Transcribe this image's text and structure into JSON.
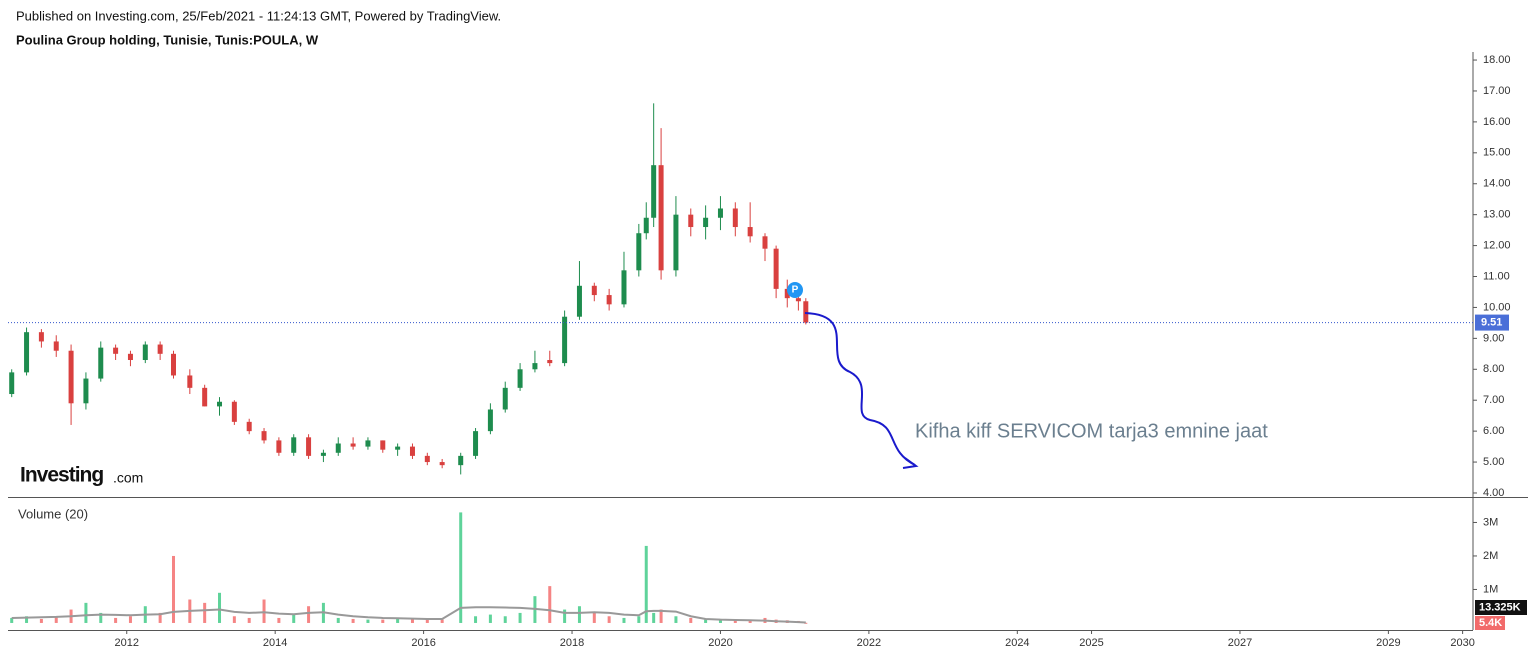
{
  "chart_data": {
    "type": "candlestick",
    "subtitle": "Published on Investing.com, 25/Feb/2021 - 11:24:13 GMT, Powered by TradingView.",
    "title": "Poulina Group holding, Tunisie, Tunis:POULA, W",
    "logo": {
      "brand": "Investing",
      "suffix": ".com"
    },
    "annotation": "Kifha kiff SERVICOM tarja3 emnine jaat",
    "marker_label": "P",
    "up_color": "#1e8c4e",
    "down_color": "#d9403f",
    "volume_up_color": "#5fd39a",
    "volume_down_color": "#f58484",
    "volume_ma_color": "#999999",
    "x": [
      2010.45,
      2010.65,
      2010.85,
      2011.05,
      2011.25,
      2011.45,
      2011.65,
      2011.85,
      2012.05,
      2012.25,
      2012.45,
      2012.63,
      2012.85,
      2013.05,
      2013.25,
      2013.45,
      2013.65,
      2013.85,
      2014.05,
      2014.25,
      2014.45,
      2014.65,
      2014.85,
      2015.05,
      2015.25,
      2015.45,
      2015.65,
      2015.85,
      2016.05,
      2016.25,
      2016.5,
      2016.7,
      2016.9,
      2017.1,
      2017.3,
      2017.5,
      2017.7,
      2017.9,
      2018.1,
      2018.3,
      2018.5,
      2018.7,
      2018.9,
      2019.0,
      2019.1,
      2019.2,
      2019.4,
      2019.6,
      2019.8,
      2020.0,
      2020.2,
      2020.4,
      2020.6,
      2020.75,
      2020.9,
      2021.05,
      2021.15
    ],
    "open": [
      7.2,
      7.9,
      9.2,
      8.9,
      8.6,
      6.9,
      7.7,
      8.7,
      8.5,
      8.3,
      8.8,
      8.5,
      7.8,
      7.4,
      6.8,
      6.95,
      6.3,
      6.0,
      5.7,
      5.3,
      5.8,
      5.2,
      5.3,
      5.6,
      5.5,
      5.7,
      5.4,
      5.5,
      5.2,
      5.0,
      4.9,
      5.2,
      6.0,
      6.7,
      7.4,
      8.0,
      8.3,
      8.2,
      9.7,
      10.7,
      10.4,
      10.1,
      11.2,
      12.4,
      12.9,
      14.6,
      11.2,
      13.0,
      12.6,
      12.9,
      13.2,
      12.6,
      12.3,
      11.9,
      10.6,
      10.3,
      10.2
    ],
    "high": [
      8.0,
      9.35,
      9.3,
      9.1,
      8.8,
      7.9,
      8.9,
      8.8,
      8.6,
      8.9,
      8.9,
      8.6,
      8.0,
      7.5,
      7.1,
      7.0,
      6.4,
      6.1,
      5.8,
      5.9,
      5.9,
      5.4,
      5.8,
      5.8,
      5.8,
      5.7,
      5.6,
      5.6,
      5.3,
      5.1,
      5.3,
      6.1,
      6.9,
      7.6,
      8.2,
      8.6,
      8.6,
      9.9,
      11.5,
      10.8,
      10.6,
      11.8,
      12.7,
      13.4,
      16.6,
      15.8,
      13.6,
      13.2,
      13.3,
      13.6,
      13.4,
      13.4,
      12.4,
      12.0,
      10.9,
      10.5,
      10.3
    ],
    "low": [
      7.1,
      7.8,
      8.7,
      8.4,
      6.2,
      6.7,
      7.6,
      8.3,
      8.1,
      8.2,
      8.3,
      7.7,
      7.2,
      6.8,
      6.5,
      6.2,
      5.9,
      5.6,
      5.2,
      5.2,
      5.1,
      5.0,
      5.2,
      5.4,
      5.4,
      5.3,
      5.2,
      5.1,
      4.9,
      4.8,
      4.6,
      5.1,
      5.9,
      6.6,
      7.3,
      7.9,
      8.1,
      8.1,
      9.6,
      10.2,
      9.9,
      10.0,
      11.0,
      12.2,
      12.6,
      10.9,
      11.0,
      12.3,
      12.2,
      12.5,
      12.3,
      12.1,
      11.5,
      10.3,
      10.0,
      9.9,
      9.45
    ],
    "close": [
      7.9,
      9.2,
      8.9,
      8.6,
      6.9,
      7.7,
      8.7,
      8.5,
      8.3,
      8.8,
      8.5,
      7.8,
      7.4,
      6.8,
      6.95,
      6.3,
      6.0,
      5.7,
      5.3,
      5.8,
      5.2,
      5.3,
      5.6,
      5.5,
      5.7,
      5.4,
      5.5,
      5.2,
      5.0,
      4.9,
      5.2,
      6.0,
      6.7,
      7.4,
      8.0,
      8.2,
      8.2,
      9.7,
      10.7,
      10.4,
      10.1,
      11.2,
      12.4,
      12.9,
      14.6,
      11.2,
      13.0,
      12.6,
      12.9,
      13.2,
      12.6,
      12.3,
      11.9,
      10.6,
      10.3,
      10.2,
      9.51
    ],
    "volume": [
      150000,
      200000,
      120000,
      180000,
      400000,
      600000,
      300000,
      150000,
      200000,
      500000,
      300000,
      2000000,
      700000,
      600000,
      900000,
      200000,
      150000,
      700000,
      150000,
      250000,
      500000,
      600000,
      150000,
      120000,
      100000,
      100000,
      150000,
      120000,
      120000,
      100000,
      3300000,
      200000,
      250000,
      200000,
      300000,
      800000,
      1100000,
      400000,
      500000,
      300000,
      200000,
      150000,
      200000,
      2300000,
      300000,
      400000,
      200000,
      150000,
      100000,
      120000,
      100000,
      100000,
      150000,
      100000,
      80000,
      60000,
      5400
    ],
    "volume_ma": [
      150000,
      160000,
      170000,
      180000,
      200000,
      230000,
      250000,
      240000,
      230000,
      250000,
      260000,
      330000,
      360000,
      380000,
      400000,
      330000,
      300000,
      320000,
      280000,
      260000,
      300000,
      320000,
      250000,
      200000,
      170000,
      150000,
      140000,
      130000,
      120000,
      120000,
      450000,
      470000,
      470000,
      460000,
      450000,
      420000,
      380000,
      300000,
      300000,
      320000,
      300000,
      250000,
      230000,
      350000,
      360000,
      360000,
      340000,
      200000,
      120000,
      100000,
      90000,
      80000,
      70000,
      50000,
      40000,
      25000,
      13325
    ],
    "volume_ma_last_label": "13.325K",
    "volume_last_label": "5.4K",
    "volume_title": "Volume (20)",
    "last_price": 9.51,
    "xlim": [
      2010.4,
      2030.14
    ],
    "xticks": [
      2012,
      2014,
      2016,
      2018,
      2020,
      2022,
      2024,
      2025,
      2027,
      2029,
      2030
    ],
    "ylim": [
      3.87,
      18.26
    ],
    "yticks": [
      {
        "value": 4,
        "label": "4.00"
      },
      {
        "value": 5,
        "label": "5.00"
      },
      {
        "value": 6,
        "label": "6.00"
      },
      {
        "value": 7,
        "label": "7.00"
      },
      {
        "value": 8,
        "label": "8.00"
      },
      {
        "value": 9,
        "label": "9.00"
      },
      {
        "value": 10,
        "label": "10.00"
      },
      {
        "value": 11,
        "label": "11.00"
      },
      {
        "value": 12,
        "label": "12.00"
      },
      {
        "value": 13,
        "label": "13.00"
      },
      {
        "value": 14,
        "label": "14.00"
      },
      {
        "value": 15,
        "label": "15.00"
      },
      {
        "value": 16,
        "label": "16.00"
      },
      {
        "value": 17,
        "label": "17.00"
      },
      {
        "value": 18,
        "label": "18.00"
      }
    ],
    "volume_ylim": [
      -210000,
      3730000
    ],
    "volume_yticks": [
      {
        "value": 1000000,
        "label": "1M"
      },
      {
        "value": 2000000,
        "label": "2M"
      },
      {
        "value": 3000000,
        "label": "3M"
      }
    ]
  }
}
